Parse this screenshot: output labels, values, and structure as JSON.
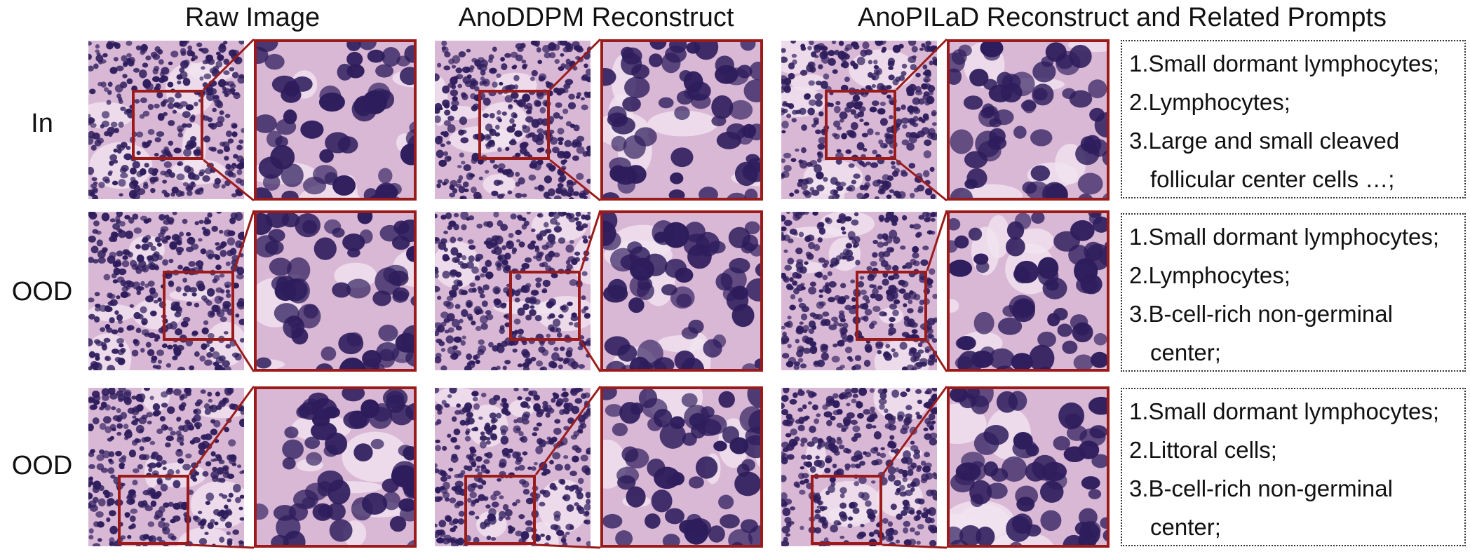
{
  "headers": {
    "raw": "Raw Image",
    "anoddpm": "AnoDDPM Reconstruct",
    "anopilad": "AnoPILaD Reconstruct and Related Prompts"
  },
  "rows": [
    {
      "label": "In",
      "prompts": [
        "1.Small dormant lymphocytes;",
        "2.Lymphocytes;",
        "3.Large and small cleaved",
        "follicular center cells …;"
      ]
    },
    {
      "label": "OOD",
      "prompts": [
        "1.Small dormant lymphocytes;",
        "2.Lymphocytes;",
        "3.B-cell-rich non-germinal",
        "center;"
      ]
    },
    {
      "label": "OOD",
      "prompts": [
        "1.Small dormant lymphocytes;",
        "2.Littoral cells;",
        "3.B-cell-rich non-germinal",
        "center;"
      ]
    }
  ],
  "colors": {
    "frame": "#9b1b1b",
    "stain_pink": "#d9b8d6",
    "nucleus": "#2e1d5c"
  }
}
